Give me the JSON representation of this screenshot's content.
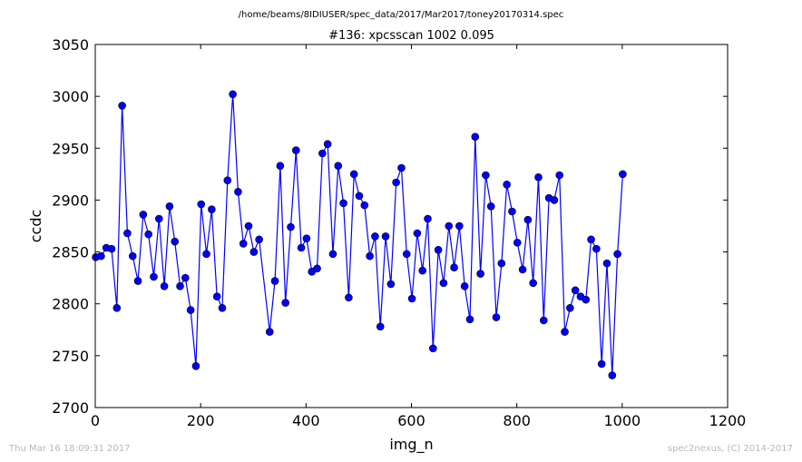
{
  "chart_data": {
    "type": "line",
    "suptitle": "/home/beams/8IDIUSER/spec_data/2017/Mar2017/toney20170314.spec",
    "title": "#136: xpcsscan 1002 0.095",
    "xlabel": "img_n",
    "ylabel": "ccdc",
    "xlim": [
      0,
      1200
    ],
    "ylim": [
      2700,
      3050
    ],
    "xticks": [
      0,
      200,
      400,
      600,
      800,
      1000,
      1200
    ],
    "yticks": [
      2700,
      2750,
      2800,
      2850,
      2900,
      2950,
      3000,
      3050
    ],
    "grid": false,
    "legend": "none",
    "line_color": "#0000ff",
    "marker": "circle",
    "series": [
      {
        "x": [
          1,
          11,
          21,
          31,
          41,
          51,
          61,
          71,
          81,
          91,
          101,
          111,
          121,
          131,
          141,
          151,
          161,
          171,
          181,
          191,
          201,
          211,
          221,
          231,
          241,
          251,
          261,
          271,
          281,
          291,
          301,
          311,
          331,
          341,
          351,
          361,
          371,
          381,
          391,
          401,
          411,
          421,
          431,
          441,
          451,
          461,
          471,
          481,
          491,
          501,
          511,
          521,
          531,
          541,
          551,
          561,
          571,
          581,
          591,
          601,
          611,
          621,
          631,
          641,
          651,
          661,
          671,
          681,
          691,
          701,
          711,
          721,
          731,
          741,
          751,
          761,
          771,
          781,
          791,
          801,
          811,
          821,
          831,
          841,
          851,
          861,
          871,
          881,
          891,
          901,
          911,
          921,
          931,
          941,
          951,
          961,
          971,
          981,
          991,
          1001
        ],
        "values": [
          2845,
          2846,
          2854,
          2853,
          2796,
          2991,
          2868,
          2846,
          2822,
          2886,
          2867,
          2826,
          2882,
          2817,
          2894,
          2860,
          2817,
          2825,
          2794,
          2740,
          2896,
          2848,
          2891,
          2807,
          2796,
          2919,
          3002,
          2908,
          2858,
          2875,
          2850,
          2862,
          2773,
          2822,
          2933,
          2801,
          2874,
          2948,
          2854,
          2863,
          2831,
          2834,
          2945,
          2954,
          2848,
          2933,
          2897,
          2806,
          2925,
          2904,
          2895,
          2846,
          2865,
          2778,
          2865,
          2819,
          2917,
          2931,
          2848,
          2805,
          2868,
          2832,
          2882,
          2757,
          2852,
          2820,
          2875,
          2835,
          2875,
          2817,
          2785,
          2961,
          2829,
          2924,
          2894,
          2787,
          2839,
          2915,
          2889,
          2859,
          2833,
          2881,
          2820,
          2922,
          2784,
          2902,
          2900,
          2924,
          2773,
          2796,
          2813,
          2807,
          2804,
          2862,
          2853,
          2742,
          2839,
          2731,
          2848,
          2925
        ]
      }
    ]
  },
  "footer": {
    "left": "Thu Mar 16 18:09:31 2017",
    "right": "spec2nexus, (C) 2014-2017"
  }
}
